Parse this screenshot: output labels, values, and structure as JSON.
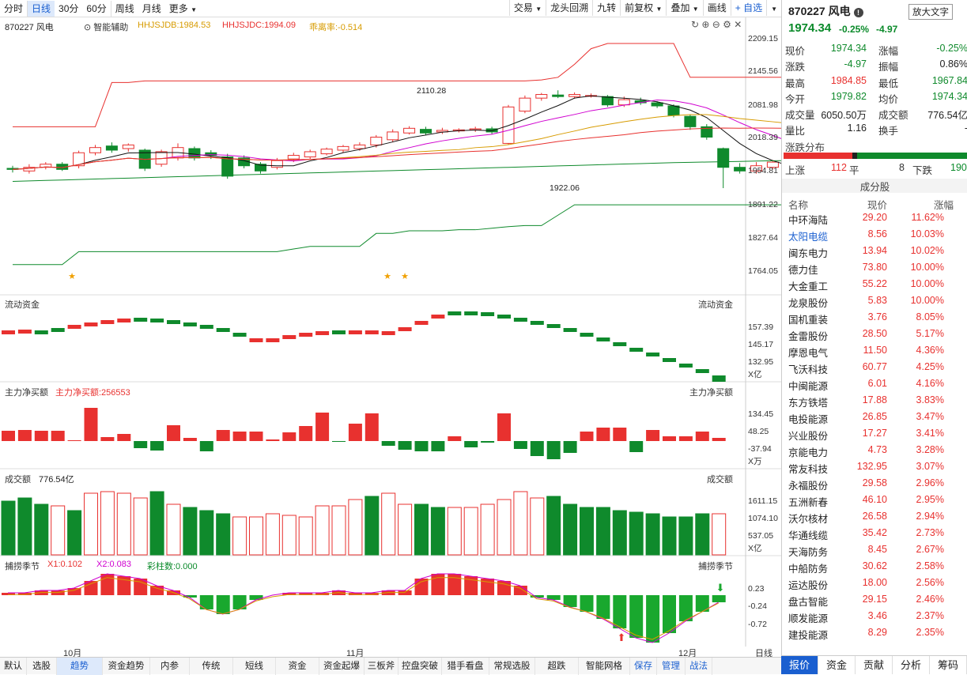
{
  "toolbar": {
    "left": [
      "分时",
      "日线",
      "30分",
      "60分",
      "周线",
      "月线",
      "更多"
    ],
    "right": [
      "交易",
      "龙头回溯",
      "九转",
      "前复权",
      "叠加",
      "画线",
      "+ 自选"
    ]
  },
  "kline": {
    "symbol": "870227 风电",
    "assist": "智能辅助",
    "hhjsjdb": "HHJSJDB:1984.53",
    "hhjsjdc": "HHJSJDC:1994.09",
    "premium": "乖离率:-0.514",
    "high_label": "2110.28",
    "low_label": "1922.06",
    "axis": [
      "2209.15",
      "2145.56",
      "2081.98",
      "2018.39",
      "1954.81",
      "1891.22",
      "1827.64",
      "1764.05"
    ]
  },
  "flow": {
    "title": "流动资金",
    "right_title": "流动资金",
    "axis": [
      "157.39",
      "145.17",
      "132.95"
    ],
    "unit": "X亿"
  },
  "net": {
    "title": "主力净买额",
    "value": "主力净买额:256553",
    "right_title": "主力净买额",
    "axis": [
      "134.45",
      "48.25",
      "-37.94"
    ],
    "unit": "X万"
  },
  "amount": {
    "title": "成交额",
    "value": "776.54亿",
    "right_title": "成交额",
    "axis": [
      "1611.15",
      "1074.10",
      "537.05"
    ],
    "unit": "X亿"
  },
  "season": {
    "title": "捕捞季节",
    "x1": "X1:0.102",
    "x2": "X2:0.083",
    "bar": "彩柱数:0.000",
    "right_title": "捕捞季节",
    "axis": [
      "0.23",
      "-0.24",
      "-0.72"
    ]
  },
  "dates": [
    "10月",
    "11月",
    "12月"
  ],
  "period_label": "日线",
  "bottom": [
    "默认",
    "选股",
    "趋势",
    "资金趋势",
    "内参",
    "传统",
    "短线",
    "资金",
    "资金起爆",
    "三板斧",
    "控盘突破",
    "猎手看盘",
    "常规选股",
    "超跌",
    "智能网格",
    "保存",
    "管理",
    "战法"
  ],
  "quote": {
    "title": "870227 风电",
    "big_text": "放大文字",
    "price": "1974.34",
    "pct": "-0.25%",
    "chg": "-4.97",
    "rows": [
      [
        "现价",
        "1974.34",
        "涨幅",
        "-0.25%"
      ],
      [
        "涨跌",
        "-4.97",
        "振幅",
        "0.86%"
      ],
      [
        "最高",
        "1984.85",
        "最低",
        "1967.84"
      ],
      [
        "今开",
        "1979.82",
        "均价",
        "1974.34"
      ],
      [
        "成交量",
        "6050.50万",
        "成交额",
        "776.54亿"
      ],
      [
        "量比",
        "1.16",
        "换手",
        "-"
      ]
    ],
    "dist_title": "涨跌分布",
    "up_label": "上涨",
    "up": "112",
    "flat_label": "平",
    "flat": "8",
    "down_label": "下跌",
    "down": "190"
  },
  "components": {
    "title": "成分股",
    "cols": [
      "名称",
      "现价",
      "涨幅"
    ],
    "rows": [
      [
        "中环海陆",
        "29.20",
        "11.62%"
      ],
      [
        "太阳电缆",
        "8.56",
        "10.03%"
      ],
      [
        "闽东电力",
        "13.94",
        "10.02%"
      ],
      [
        "德力佳",
        "73.80",
        "10.00%"
      ],
      [
        "大金重工",
        "55.22",
        "10.00%"
      ],
      [
        "龙泉股份",
        "5.83",
        "10.00%"
      ],
      [
        "国机重装",
        "3.76",
        "8.05%"
      ],
      [
        "金雷股份",
        "28.50",
        "5.17%"
      ],
      [
        "摩恩电气",
        "11.50",
        "4.36%"
      ],
      [
        "飞沃科技",
        "60.77",
        "4.25%"
      ],
      [
        "中闽能源",
        "6.01",
        "4.16%"
      ],
      [
        "东方铁塔",
        "17.88",
        "3.83%"
      ],
      [
        "电投能源",
        "26.85",
        "3.47%"
      ],
      [
        "兴业股份",
        "17.27",
        "3.41%"
      ],
      [
        "京能电力",
        "4.73",
        "3.28%"
      ],
      [
        "常友科技",
        "132.95",
        "3.07%"
      ],
      [
        "永福股份",
        "29.58",
        "2.96%"
      ],
      [
        "五洲新春",
        "46.10",
        "2.95%"
      ],
      [
        "沃尔核材",
        "26.58",
        "2.94%"
      ],
      [
        "华通线缆",
        "35.42",
        "2.73%"
      ],
      [
        "天海防务",
        "8.45",
        "2.67%"
      ],
      [
        "中船防务",
        "30.62",
        "2.58%"
      ],
      [
        "运达股份",
        "18.00",
        "2.56%"
      ],
      [
        "盘古智能",
        "29.15",
        "2.46%"
      ],
      [
        "顺发能源",
        "3.46",
        "2.37%"
      ],
      [
        "建投能源",
        "8.29",
        "2.35%"
      ]
    ]
  },
  "rtabs": [
    "报价",
    "资金",
    "贡献",
    "分析",
    "筹码"
  ],
  "colors": {
    "up": "#e8312f",
    "down": "#0f8a2c",
    "accent": "#1a5fd0"
  }
}
